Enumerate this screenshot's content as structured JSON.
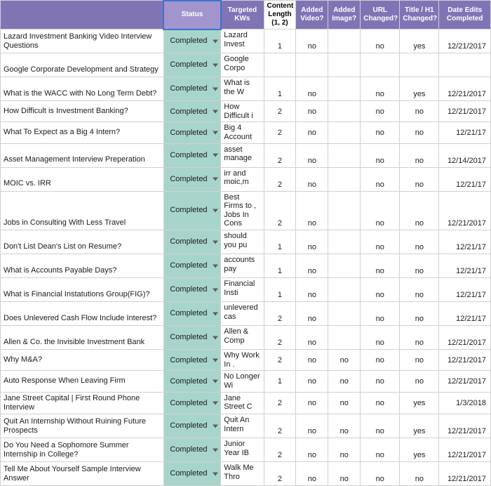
{
  "headers": {
    "title": "",
    "status": "Status",
    "kws": "Targeted KWs",
    "len": "Content Length (1, 2)",
    "video": "Added Video?",
    "image": "Added Image?",
    "url": "URL Changed?",
    "h1": "Title / H1 Changed?",
    "date": "Date Edits Completed"
  },
  "colors": {
    "header_bg": "#8174b5",
    "header_selected_bg": "#a295cd",
    "selection_border": "#3b73d1",
    "status_bg": "#a8d5cb",
    "grid_border": "#d0d0d0",
    "content_len_bg": "#ffffff"
  },
  "rows": [
    {
      "tall": true,
      "title": "Lazard Investment Banking Video Interview Questions",
      "status": "Completed",
      "kw": "Lazard Invest",
      "len": "1",
      "video": "no",
      "image": "",
      "url": "no",
      "h1": "yes",
      "date": "12/21/2017"
    },
    {
      "tall": true,
      "title": "Google Corporate Development and Strategy",
      "status": "Completed",
      "kw": "Google Corpo",
      "len": "",
      "video": "",
      "image": "",
      "url": "",
      "h1": "",
      "date": ""
    },
    {
      "tall": true,
      "title": "What is the WACC with No Long Term Debt?",
      "status": "Completed",
      "kw": "What is the W",
      "len": "1",
      "video": "no",
      "image": "",
      "url": "no",
      "h1": "yes",
      "date": "12/21/2017"
    },
    {
      "tall": false,
      "title": "How Difficult is Investment Banking?",
      "status": "Completed",
      "kw": "How Difficult i",
      "len": "2",
      "video": "no",
      "image": "",
      "url": "no",
      "h1": "no",
      "date": "12/21/2017"
    },
    {
      "tall": false,
      "title": "What To Expect as a Big 4 Intern?",
      "status": "Completed",
      "kw": "Big 4 Account",
      "len": "2",
      "video": "no",
      "image": "",
      "url": "no",
      "h1": "no",
      "date": "12/21/17"
    },
    {
      "tall": true,
      "title": "Asset Management Interview Preperation",
      "status": "Completed",
      "kw": "asset manage",
      "len": "2",
      "video": "no",
      "image": "",
      "url": "no",
      "h1": "no",
      "date": "12/14/2017"
    },
    {
      "tall": true,
      "title": "MOIC vs. IRR",
      "status": "Completed",
      "kw": "irr and moic,m",
      "len": "2",
      "video": "no",
      "image": "",
      "url": "no",
      "h1": "no",
      "date": "12/21/17"
    },
    {
      "tall": true,
      "title": "Jobs in Consulting With Less Travel",
      "status": "Completed",
      "kw": "Best Firms to , Jobs In Cons",
      "len": "2",
      "video": "no",
      "image": "",
      "url": "no",
      "h1": "no",
      "date": "12/21/2017"
    },
    {
      "tall": true,
      "title": "Don't List Dean's List on Resume?",
      "status": "Completed",
      "kw": "should you pu",
      "len": "1",
      "video": "no",
      "image": "",
      "url": "no",
      "h1": "no",
      "date": "12/21/17"
    },
    {
      "tall": true,
      "title": "What is Accounts Payable Days?",
      "status": "Completed",
      "kw": "accounts pay",
      "len": "1",
      "video": "no",
      "image": "",
      "url": "no",
      "h1": "no",
      "date": "12/21/17"
    },
    {
      "tall": true,
      "title": "What is Financial Instatutions Group(FIG)?",
      "status": "Completed",
      "kw": "Financial Insti",
      "len": "1",
      "video": "no",
      "image": "",
      "url": "no",
      "h1": "no",
      "date": "12/21/17"
    },
    {
      "tall": true,
      "title": "Does Unlevered Cash Flow Include Interest?",
      "status": "Completed",
      "kw": "unlevered cas",
      "len": "2",
      "video": "no",
      "image": "",
      "url": "no",
      "h1": "no",
      "date": "12/21/17"
    },
    {
      "tall": true,
      "title": "Allen & Co. the Invisible Investment Bank",
      "status": "Completed",
      "kw": "Allen & Comp",
      "len": "2",
      "video": "no",
      "image": "",
      "url": "no",
      "h1": "no",
      "date": "12/21/2017"
    },
    {
      "tall": false,
      "title": "Why M&A?",
      "status": "Completed",
      "kw": "Why Work In .",
      "len": "2",
      "video": "no",
      "image": "no",
      "url": "no",
      "h1": "no",
      "date": "12/21/2017"
    },
    {
      "tall": false,
      "title": "Auto Response When Leaving Firm",
      "status": "Completed",
      "kw": "No Longer Wi",
      "len": "1",
      "video": "no",
      "image": "no",
      "url": "no",
      "h1": "no",
      "date": "12/21/2017"
    },
    {
      "tall": false,
      "title": "Jane Street Capital | First Round Phone Interview",
      "status": "Completed",
      "kw": "Jane Street C",
      "len": "2",
      "video": "no",
      "image": "no",
      "url": "no",
      "h1": "yes",
      "date": "1/3/2018"
    },
    {
      "tall": true,
      "title": "Quit An Internship Without Ruining Future Prospects",
      "status": "Completed",
      "kw": "Quit An Intern",
      "len": "2",
      "video": "no",
      "image": "no",
      "url": "no",
      "h1": "yes",
      "date": "12/21/2017"
    },
    {
      "tall": true,
      "title": "Do You Need a Sophomore Summer Internship in College?",
      "status": "Completed",
      "kw": "Junior Year IB",
      "len": "2",
      "video": "no",
      "image": "no",
      "url": "no",
      "h1": "yes",
      "date": "12/21/2017"
    },
    {
      "tall": true,
      "title": "Tell Me About Yourself Sample Interview Answer",
      "status": "Completed",
      "kw": "Walk Me Thro",
      "len": "2",
      "video": "no",
      "image": "no",
      "url": "no",
      "h1": "no",
      "date": "12/21/2017"
    }
  ]
}
